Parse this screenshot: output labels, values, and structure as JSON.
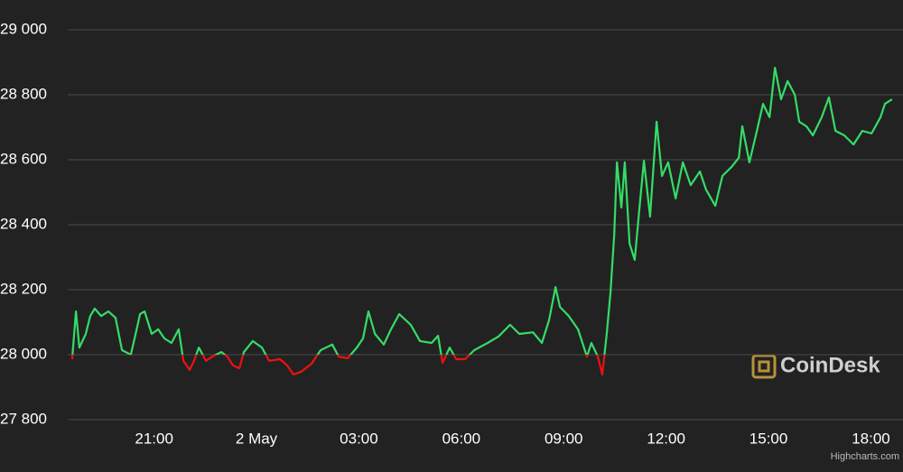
{
  "chart_data": {
    "type": "line",
    "watermark": "CoinDesk",
    "credits": "Highcharts.com",
    "threshold": 28000,
    "grid": true,
    "series": [
      {
        "color": "#33dd66",
        "negative_color": "#ee1111",
        "x": [
          -5.4,
          -5.29,
          -5.19,
          -5.0,
          -4.87,
          -4.74,
          -4.55,
          -4.34,
          -4.13,
          -3.94,
          -3.68,
          -3.54,
          -3.41,
          -3.28,
          -3.07,
          -2.88,
          -2.7,
          -2.49,
          -2.28,
          -2.14,
          -1.96,
          -1.83,
          -1.69,
          -1.48,
          -1.3,
          -1.03,
          -0.85,
          -0.69,
          -0.5,
          -0.37,
          -0.11,
          0.16,
          0.37,
          0.69,
          0.9,
          1.08,
          1.3,
          1.61,
          1.88,
          2.22,
          2.41,
          2.67,
          2.94,
          3.12,
          3.28,
          3.47,
          3.73,
          3.94,
          4.18,
          4.52,
          4.79,
          5.13,
          5.32,
          5.45,
          5.66,
          5.85,
          6.11,
          6.38,
          6.77,
          7.09,
          7.43,
          7.7,
          8.1,
          8.36,
          8.57,
          8.76,
          8.89,
          9.15,
          9.42,
          9.68,
          9.81,
          10.0,
          10.13,
          10.26,
          10.37,
          10.48,
          10.56,
          10.69,
          10.79,
          10.93,
          11.08,
          11.22,
          11.35,
          11.53,
          11.72,
          11.88,
          12.06,
          12.28,
          12.49,
          12.72,
          12.99,
          13.17,
          13.44,
          13.65,
          13.92,
          14.13,
          14.23,
          14.44,
          14.66,
          14.84,
          15.03,
          15.19,
          15.37,
          15.56,
          15.77,
          15.9,
          16.11,
          16.3,
          16.56,
          16.77,
          16.96,
          17.22,
          17.49,
          17.75,
          18.02,
          18.28,
          18.41,
          18.62
        ],
        "values": [
          27986,
          28133,
          28022,
          28064,
          28119,
          28142,
          28119,
          28133,
          28114,
          28014,
          28000,
          28064,
          28125,
          28133,
          28064,
          28078,
          28050,
          28036,
          28078,
          27981,
          27953,
          27981,
          28022,
          27981,
          27994,
          28008,
          27994,
          27967,
          27958,
          28008,
          28042,
          28022,
          27981,
          27986,
          27967,
          27939,
          27947,
          27972,
          28014,
          28031,
          27994,
          27989,
          28022,
          28050,
          28133,
          28064,
          28031,
          28078,
          28125,
          28092,
          28042,
          28036,
          28058,
          27975,
          28022,
          27986,
          27986,
          28014,
          28036,
          28056,
          28092,
          28064,
          28069,
          28036,
          28106,
          28208,
          28147,
          28119,
          28078,
          27994,
          28036,
          27994,
          27939,
          28064,
          28189,
          28369,
          28592,
          28453,
          28592,
          28342,
          28292,
          28453,
          28597,
          28425,
          28717,
          28550,
          28592,
          28481,
          28592,
          28522,
          28564,
          28508,
          28458,
          28550,
          28578,
          28606,
          28703,
          28592,
          28689,
          28772,
          28731,
          28883,
          28786,
          28842,
          28800,
          28717,
          28703,
          28675,
          28731,
          28792,
          28689,
          28675,
          28647,
          28689,
          28681,
          28731,
          28772,
          28786
        ]
      }
    ],
    "xlim": [
      -5.53,
      18.94
    ],
    "xticks": [
      {
        "value": -3,
        "label": "21:00"
      },
      {
        "value": 0,
        "label": "2 May"
      },
      {
        "value": 3,
        "label": "03:00"
      },
      {
        "value": 6,
        "label": "06:00"
      },
      {
        "value": 9,
        "label": "09:00"
      },
      {
        "value": 12,
        "label": "12:00"
      },
      {
        "value": 15,
        "label": "15:00"
      },
      {
        "value": 18,
        "label": "18:00"
      }
    ],
    "ylim": [
      27800,
      29000
    ],
    "yticks": [
      {
        "value": 27800,
        "label": "27 800"
      },
      {
        "value": 28000,
        "label": "28 000"
      },
      {
        "value": 28200,
        "label": "28 200"
      },
      {
        "value": 28400,
        "label": "28 400"
      },
      {
        "value": 28600,
        "label": "28 600"
      },
      {
        "value": 28800,
        "label": "28 800"
      },
      {
        "value": 29000,
        "label": "29 000"
      }
    ]
  }
}
